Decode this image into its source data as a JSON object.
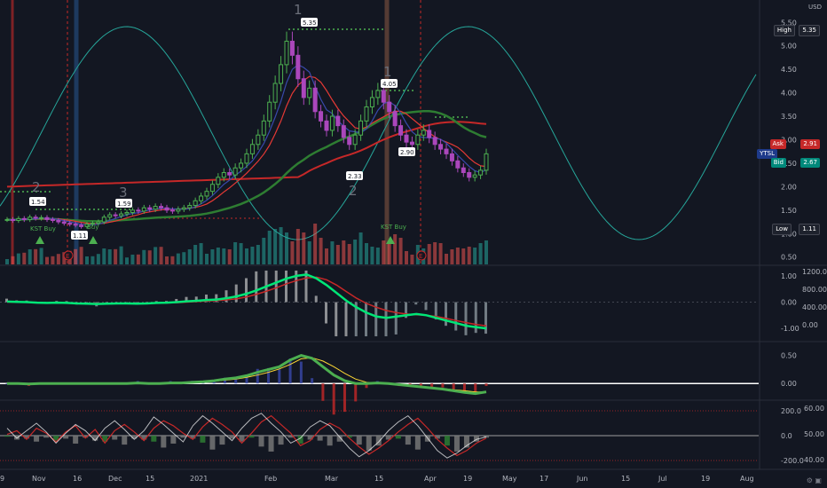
{
  "currency": "USD",
  "x_axis_labels": [
    "9",
    "Nov",
    "16",
    "Dec",
    "15",
    "2021",
    "Feb",
    "Mar",
    "15",
    "Apr",
    "19",
    "May",
    "17",
    "Jun",
    "15",
    "Jul",
    "19",
    "Aug"
  ],
  "price_axis_ticks": [
    "5.50",
    "5.00",
    "4.50",
    "4.00",
    "3.50",
    "3.00",
    "2.50",
    "2.00",
    "1.50",
    "1.00",
    "0.50"
  ],
  "macd_axis_left": [
    "1.00",
    "0.00",
    "-1.00"
  ],
  "macd_axis_right": [
    "1200.00",
    "800.00",
    "400.00",
    "0.00"
  ],
  "osc_axis": [
    "0.50",
    "0.00"
  ],
  "rsi_axis_left": [
    "200.0",
    "0.0",
    "-200.0"
  ],
  "rsi_axis_right": [
    "60.00",
    "50.00",
    "40.00"
  ],
  "hud": {
    "high_label": "High",
    "high_value": "5.35",
    "ask_label": "Ask",
    "ask_value": "2.91",
    "symbol": "YTSL",
    "bid_label": "Bid",
    "bid_value": "2.67",
    "low_label": "Low",
    "low_value": "1.11"
  },
  "annotations": {
    "peak_label": "5.35",
    "secondary_peak_label": "4.05",
    "pivot_label_1": "2.90",
    "pivot_label_2": "2.33",
    "left_label_1": "1.54",
    "left_label_2": "1.59",
    "left_low_label": "1.11",
    "kst_buy_1": "KST Buy",
    "kst_buy_2": "KST Buy",
    "earnings_mark_1": "E",
    "earnings_mark_2": "E",
    "wave_1_top": "1",
    "wave_2": "2",
    "wave_3": "3",
    "wave_4": "1",
    "wave_5": "2",
    "buy_tag": "Buy"
  },
  "bottom_icons": "⚙  ▣",
  "chart_data": [
    {
      "type": "candlestick",
      "title": "",
      "price_range": [
        0.4,
        5.6
      ],
      "series": [
        {
          "name": "",
          "values": [
            1.3,
            1.28,
            1.32,
            1.3,
            1.35,
            1.33,
            1.34,
            1.3,
            1.28,
            1.25,
            1.22,
            1.2,
            1.18,
            1.15,
            1.2,
            1.22,
            1.25,
            1.35,
            1.4,
            1.38,
            1.42,
            1.45,
            1.5,
            1.48,
            1.55,
            1.52,
            1.58,
            1.55,
            1.5,
            1.48,
            1.52,
            1.55,
            1.6,
            1.7,
            1.8,
            1.9,
            2.05,
            2.2,
            2.3,
            2.25,
            2.4,
            2.5,
            2.7,
            2.9,
            3.1,
            3.4,
            3.8,
            4.2,
            4.6,
            5.1,
            4.8,
            4.3,
            3.9,
            4.1,
            3.6,
            3.4,
            3.2,
            3.5,
            3.3,
            3.05,
            2.9,
            3.1,
            3.4,
            3.7,
            3.9,
            4.05,
            3.8,
            3.6,
            3.3,
            3.1,
            2.95,
            2.9,
            3.1,
            3.2,
            3.05,
            2.9,
            2.8,
            2.7,
            2.55,
            2.4,
            2.3,
            2.2,
            2.25,
            2.35,
            2.7
          ]
        }
      ]
    },
    {
      "type": "line",
      "title": "",
      "ylim": [
        -1.4,
        1.3
      ],
      "series": [
        {
          "name": "",
          "values": [
            0.02,
            0.01,
            0.0,
            -0.02,
            -0.03,
            -0.02,
            -0.03,
            -0.05,
            -0.06,
            -0.07,
            -0.06,
            -0.05,
            -0.05,
            -0.06,
            -0.05,
            -0.03,
            -0.02,
            0.0,
            0.03,
            0.05,
            0.08,
            0.1,
            0.15,
            0.22,
            0.32,
            0.45,
            0.6,
            0.75,
            0.9,
            1.0,
            1.05,
            0.9,
            0.65,
            0.35,
            0.05,
            -0.2,
            -0.4,
            -0.55,
            -0.6,
            -0.55,
            -0.5,
            -0.45,
            -0.5,
            -0.6,
            -0.7,
            -0.8,
            -0.9,
            -0.95,
            -1.0
          ]
        },
        {
          "name": "",
          "values": [
            0.0,
            0.0,
            -0.01,
            -0.02,
            -0.03,
            -0.03,
            -0.04,
            -0.04,
            -0.05,
            -0.05,
            -0.05,
            -0.05,
            -0.05,
            -0.05,
            -0.05,
            -0.04,
            -0.03,
            -0.02,
            0.0,
            0.02,
            0.04,
            0.06,
            0.09,
            0.13,
            0.2,
            0.3,
            0.42,
            0.55,
            0.7,
            0.82,
            0.92,
            0.95,
            0.85,
            0.65,
            0.4,
            0.15,
            -0.05,
            -0.2,
            -0.32,
            -0.4,
            -0.45,
            -0.48,
            -0.5,
            -0.55,
            -0.62,
            -0.7,
            -0.78,
            -0.85,
            -0.9
          ]
        }
      ]
    },
    {
      "type": "line",
      "title": "",
      "ylim": [
        -0.25,
        0.7
      ],
      "series": [
        {
          "name": "",
          "values": [
            0.0,
            0.0,
            -0.01,
            0.0,
            0.0,
            0.0,
            0.0,
            0.0,
            0.0,
            0.0,
            0.0,
            0.0,
            0.01,
            0.0,
            0.0,
            0.01,
            0.01,
            0.02,
            0.03,
            0.05,
            0.08,
            0.1,
            0.14,
            0.2,
            0.25,
            0.3,
            0.42,
            0.5,
            0.45,
            0.3,
            0.15,
            0.05,
            0.0,
            0.0,
            0.01,
            0.0,
            -0.02,
            -0.04,
            -0.06,
            -0.08,
            -0.1,
            -0.13,
            -0.16,
            -0.18,
            -0.15
          ]
        },
        {
          "name": "",
          "values": [
            0.0,
            0.0,
            0.0,
            0.0,
            0.0,
            0.0,
            0.0,
            0.0,
            0.0,
            0.0,
            0.0,
            0.0,
            0.0,
            0.0,
            0.0,
            0.0,
            0.01,
            0.01,
            0.02,
            0.04,
            0.06,
            0.08,
            0.11,
            0.15,
            0.2,
            0.26,
            0.34,
            0.44,
            0.46,
            0.4,
            0.3,
            0.18,
            0.08,
            0.02,
            0.0,
            0.0,
            -0.01,
            -0.03,
            -0.05,
            -0.07,
            -0.09,
            -0.11,
            -0.13,
            -0.15,
            -0.15
          ]
        }
      ]
    },
    {
      "type": "line",
      "title": "",
      "ylim": [
        -250,
        250
      ],
      "series": [
        {
          "name": "",
          "values": [
            10,
            40,
            -30,
            60,
            20,
            -50,
            30,
            80,
            -20,
            50,
            -60,
            40,
            90,
            30,
            -40,
            60,
            120,
            80,
            20,
            -30,
            70,
            140,
            90,
            30,
            -60,
            20,
            110,
            160,
            90,
            20,
            -80,
            -40,
            50,
            100,
            60,
            -20,
            -90,
            -150,
            -100,
            -40,
            30,
            90,
            140,
            60,
            -30,
            -100,
            -160,
            -120,
            -60,
            -20
          ]
        },
        {
          "name": "",
          "values": [
            60,
            -20,
            40,
            100,
            30,
            -60,
            20,
            90,
            40,
            -40,
            60,
            120,
            50,
            -30,
            40,
            150,
            90,
            20,
            -50,
            80,
            160,
            100,
            30,
            -40,
            60,
            140,
            180,
            100,
            30,
            -60,
            -20,
            70,
            120,
            80,
            -10,
            -100,
            -170,
            -120,
            -50,
            40,
            110,
            160,
            80,
            -20,
            -120,
            -180,
            -140,
            -80,
            -30,
            -10
          ]
        }
      ]
    }
  ]
}
